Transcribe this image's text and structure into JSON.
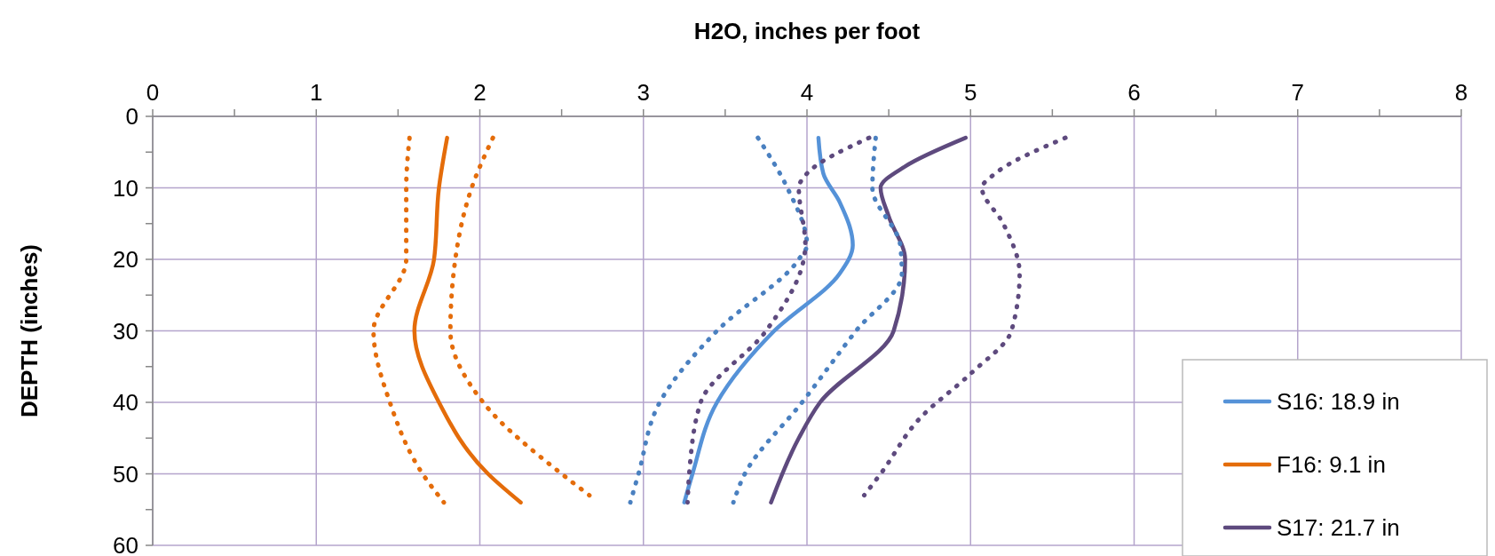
{
  "chart_data": {
    "type": "line",
    "xlabel": "H2O, inches per foot",
    "ylabel": "DEPTH (inches)",
    "xlim": [
      0,
      8
    ],
    "xticks": [
      0,
      {
        "value": 0.5,
        "label": null
      },
      1,
      {
        "value": 1.5,
        "label": null
      },
      2,
      {
        "value": 2.5,
        "label": null
      },
      3,
      {
        "value": 3.5,
        "label": null
      },
      4,
      {
        "value": 4.5,
        "label": null
      },
      5,
      {
        "value": 5.5,
        "label": null
      },
      6,
      {
        "value": 6.5,
        "label": null
      },
      7,
      {
        "value": 7.5,
        "label": null
      },
      8
    ],
    "ylim": [
      60,
      0
    ],
    "yticks": [
      0,
      {
        "value": 5,
        "label": null
      },
      10,
      {
        "value": 15,
        "label": null
      },
      20,
      {
        "value": 25,
        "label": null
      },
      30,
      {
        "value": 35,
        "label": null
      },
      40,
      {
        "value": 45,
        "label": null
      },
      50,
      {
        "value": 55,
        "label": null
      },
      60
    ],
    "grid": true,
    "legend": "bottom right",
    "marker": "none",
    "series": [
      {
        "name": "S16: 18.9 in",
        "color": "#5592d8",
        "line_style": "solid",
        "x": [
          4.07,
          4.1,
          4.2,
          4.28,
          4.2,
          3.8,
          3.45,
          3.3,
          3.25
        ],
        "values": [
          3,
          8,
          12,
          18,
          22,
          30,
          40,
          50,
          54
        ]
      },
      {
        "name": "F16: 9.1 in",
        "color": "#e46c0a",
        "line_style": "solid",
        "x": [
          1.8,
          1.75,
          1.72,
          1.6,
          1.75,
          2.05,
          2.25
        ],
        "values": [
          3,
          10,
          20,
          30,
          40,
          50,
          54
        ]
      },
      {
        "name": "S17: 21.7 in",
        "color": "#5e4a7e",
        "line_style": "solid",
        "x": [
          4.97,
          4.6,
          4.45,
          4.5,
          4.6,
          4.53,
          4.08,
          3.95,
          3.78
        ],
        "values": [
          3,
          7,
          10,
          14,
          20,
          30,
          40,
          45,
          54
        ]
      },
      {
        "color": "#4a80c0",
        "line_style": "dotted",
        "x": [
          3.7,
          3.88,
          4.0,
          3.95,
          3.45,
          3.1,
          2.97,
          2.92
        ],
        "values": [
          3,
          10,
          18,
          20,
          30,
          40,
          50,
          54
        ]
      },
      {
        "color": "#4a80c0",
        "line_style": "dotted",
        "x": [
          4.42,
          4.4,
          4.57,
          4.58,
          4.3,
          3.97,
          3.62,
          3.55
        ],
        "values": [
          3,
          10,
          18,
          22,
          30,
          40,
          50,
          54
        ]
      },
      {
        "color": "#e46c0a",
        "line_style": "dotted",
        "x": [
          1.57,
          1.55,
          1.55,
          1.35,
          1.45,
          1.65,
          1.78
        ],
        "values": [
          3,
          10,
          20,
          30,
          40,
          50,
          54
        ]
      },
      {
        "color": "#e46c0a",
        "line_style": "dotted",
        "x": [
          2.08,
          1.95,
          1.85,
          1.82,
          2.02,
          2.5,
          2.67
        ],
        "values": [
          3,
          10,
          20,
          30,
          40,
          50,
          53
        ]
      },
      {
        "color": "#5e4a7e",
        "line_style": "dotted",
        "x": [
          4.38,
          4.0,
          3.95,
          3.99,
          3.98,
          3.75,
          3.35,
          3.28,
          3.27
        ],
        "values": [
          3,
          8,
          10,
          18,
          20,
          30,
          40,
          50,
          54
        ]
      },
      {
        "color": "#5e4a7e",
        "line_style": "dotted",
        "x": [
          5.58,
          5.15,
          5.07,
          5.2,
          5.3,
          5.25,
          5.0,
          4.7,
          4.45,
          4.35
        ],
        "values": [
          3,
          8,
          10,
          15,
          22,
          30,
          36,
          42,
          50,
          53
        ]
      }
    ]
  }
}
